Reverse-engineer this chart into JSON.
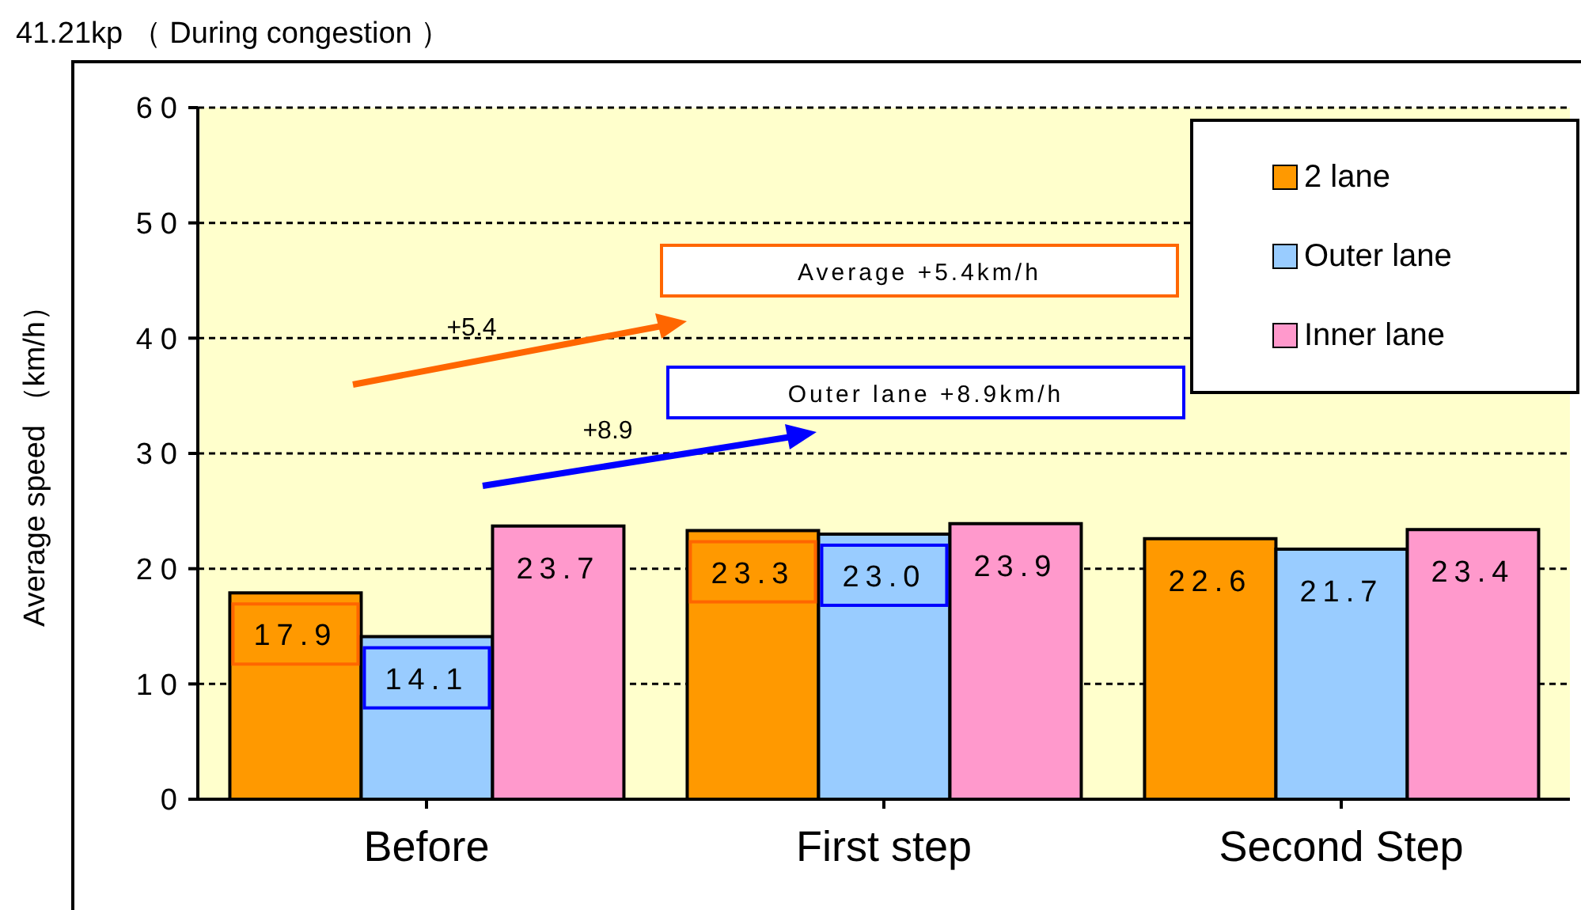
{
  "chart_data": {
    "type": "bar",
    "title": "41.21kp （ During congestion ）",
    "ylabel": "Average speed （km/h）",
    "categories": [
      "Before",
      "First step",
      "Second Step"
    ],
    "series": [
      {
        "name": "2 lane",
        "color": "#ff9900",
        "values": [
          17.9,
          23.3,
          22.6
        ],
        "value_labels": [
          "17.9",
          "23.3",
          "22.6"
        ]
      },
      {
        "name": "Outer lane",
        "color": "#99ccff",
        "values": [
          14.1,
          23.0,
          21.7
        ],
        "value_labels": [
          "14.1",
          "23.0",
          "21.7"
        ]
      },
      {
        "name": "Inner lane",
        "color": "#ff99cc",
        "values": [
          23.7,
          23.9,
          23.4
        ],
        "value_labels": [
          "23.7",
          "23.9",
          "23.4"
        ]
      }
    ],
    "ylim": [
      0,
      60
    ],
    "yticks": [
      0,
      10,
      20,
      30,
      40,
      50,
      60
    ],
    "grid": "y",
    "legend": "top right",
    "annotations": [
      "Average +5.4km/h",
      "Outer lane +8.9km/h",
      "+5.4",
      "+8.9"
    ]
  }
}
